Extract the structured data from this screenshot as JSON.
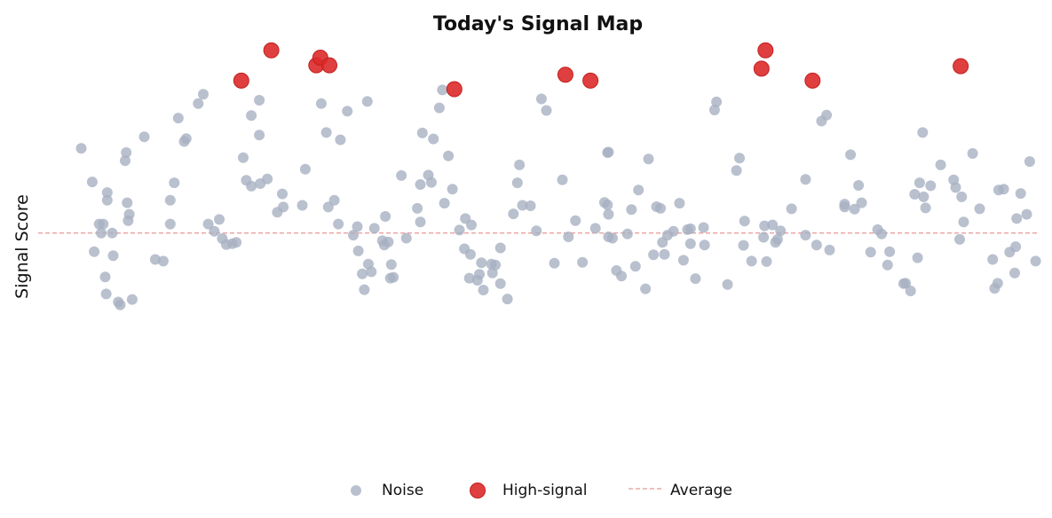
{
  "chart_data": {
    "type": "scatter",
    "title": "Today's Signal Map",
    "xlabel": "",
    "ylabel": "Signal Score",
    "xlim": [
      0,
      100
    ],
    "ylim": [
      0,
      100
    ],
    "grid": false,
    "legend_position": "bottom-center",
    "average": 53.6,
    "colors": {
      "noise": "#a7b0c2",
      "high": "#dd2a2a",
      "average": "#e89696"
    },
    "series": [
      {
        "name": "Noise",
        "points": [
          [
            4.3,
            73.5
          ],
          [
            5.4,
            65.6
          ],
          [
            5.6,
            49.2
          ],
          [
            6.1,
            55.7
          ],
          [
            6.3,
            53.6
          ],
          [
            6.5,
            55.7
          ],
          [
            6.7,
            43.3
          ],
          [
            6.8,
            39.3
          ],
          [
            6.9,
            61.3
          ],
          [
            6.9,
            63.1
          ],
          [
            7.4,
            53.6
          ],
          [
            7.5,
            48.3
          ],
          [
            8.0,
            37.4
          ],
          [
            8.2,
            36.7
          ],
          [
            8.7,
            70.6
          ],
          [
            8.8,
            72.5
          ],
          [
            8.9,
            60.7
          ],
          [
            9.0,
            56.5
          ],
          [
            9.1,
            58.0
          ],
          [
            9.4,
            38.0
          ],
          [
            10.6,
            76.2
          ],
          [
            11.7,
            47.4
          ],
          [
            12.5,
            47.0
          ],
          [
            13.2,
            55.7
          ],
          [
            13.2,
            61.3
          ],
          [
            13.6,
            65.4
          ],
          [
            14.0,
            80.6
          ],
          [
            14.6,
            75.1
          ],
          [
            14.8,
            75.8
          ],
          [
            16.0,
            84.0
          ],
          [
            16.5,
            86.2
          ],
          [
            17.0,
            55.7
          ],
          [
            17.6,
            54.0
          ],
          [
            18.1,
            56.8
          ],
          [
            18.4,
            52.3
          ],
          [
            18.8,
            50.9
          ],
          [
            19.4,
            51.1
          ],
          [
            19.8,
            51.4
          ],
          [
            20.5,
            71.3
          ],
          [
            20.8,
            66.0
          ],
          [
            21.3,
            64.6
          ],
          [
            21.3,
            81.2
          ],
          [
            22.1,
            84.8
          ],
          [
            22.1,
            76.6
          ],
          [
            22.2,
            65.2
          ],
          [
            22.9,
            66.3
          ],
          [
            23.9,
            58.5
          ],
          [
            24.4,
            62.8
          ],
          [
            24.5,
            59.7
          ],
          [
            26.4,
            60.1
          ],
          [
            26.7,
            68.6
          ],
          [
            28.3,
            84.0
          ],
          [
            28.8,
            77.2
          ],
          [
            29.0,
            59.7
          ],
          [
            29.6,
            61.3
          ],
          [
            30.0,
            55.7
          ],
          [
            30.2,
            75.5
          ],
          [
            30.9,
            82.2
          ],
          [
            31.5,
            53.1
          ],
          [
            31.9,
            55.1
          ],
          [
            32.0,
            49.4
          ],
          [
            32.4,
            44.0
          ],
          [
            32.6,
            40.3
          ],
          [
            32.9,
            84.5
          ],
          [
            33.0,
            46.3
          ],
          [
            33.3,
            44.5
          ],
          [
            33.6,
            54.7
          ],
          [
            34.4,
            51.8
          ],
          [
            34.6,
            50.8
          ],
          [
            34.7,
            57.5
          ],
          [
            35.0,
            51.5
          ],
          [
            35.2,
            43.0
          ],
          [
            35.3,
            46.2
          ],
          [
            35.5,
            43.2
          ],
          [
            36.3,
            67.1
          ],
          [
            36.8,
            52.4
          ],
          [
            37.9,
            59.4
          ],
          [
            38.2,
            65.0
          ],
          [
            38.2,
            56.2
          ],
          [
            38.4,
            77.1
          ],
          [
            39.0,
            67.2
          ],
          [
            39.3,
            65.5
          ],
          [
            39.5,
            75.7
          ],
          [
            40.1,
            83.0
          ],
          [
            40.4,
            87.2
          ],
          [
            40.6,
            60.6
          ],
          [
            41.0,
            71.7
          ],
          [
            41.4,
            63.9
          ],
          [
            42.1,
            54.3
          ],
          [
            42.6,
            49.9
          ],
          [
            42.7,
            57.0
          ],
          [
            43.1,
            43.0
          ],
          [
            43.2,
            48.6
          ],
          [
            43.3,
            55.5
          ],
          [
            43.9,
            42.5
          ],
          [
            44.1,
            43.9
          ],
          [
            44.3,
            46.6
          ],
          [
            44.5,
            40.2
          ],
          [
            45.3,
            46.3
          ],
          [
            45.4,
            44.2
          ],
          [
            45.7,
            46.1
          ],
          [
            46.2,
            41.7
          ],
          [
            46.2,
            50.1
          ],
          [
            46.9,
            38.1
          ],
          [
            47.5,
            58.1
          ],
          [
            47.9,
            65.4
          ],
          [
            48.1,
            69.6
          ],
          [
            48.4,
            60.1
          ],
          [
            49.2,
            60.0
          ],
          [
            49.8,
            54.1
          ],
          [
            50.3,
            85.1
          ],
          [
            50.8,
            82.4
          ],
          [
            51.6,
            46.5
          ],
          [
            52.4,
            66.1
          ],
          [
            53.0,
            52.7
          ],
          [
            53.7,
            56.5
          ],
          [
            54.4,
            46.7
          ],
          [
            55.7,
            54.7
          ],
          [
            56.6,
            60.8
          ],
          [
            56.9,
            72.5
          ],
          [
            56.9,
            60.2
          ],
          [
            57.0,
            52.7
          ],
          [
            57.0,
            58.0
          ],
          [
            57.0,
            72.6
          ],
          [
            57.4,
            52.4
          ],
          [
            57.8,
            44.8
          ],
          [
            58.3,
            43.5
          ],
          [
            58.9,
            53.4
          ],
          [
            59.3,
            59.1
          ],
          [
            59.7,
            45.8
          ],
          [
            60.0,
            63.7
          ],
          [
            60.7,
            40.5
          ],
          [
            61.0,
            71.0
          ],
          [
            61.5,
            48.5
          ],
          [
            61.8,
            59.8
          ],
          [
            62.2,
            59.4
          ],
          [
            62.4,
            51.4
          ],
          [
            62.6,
            48.6
          ],
          [
            62.9,
            53.1
          ],
          [
            63.5,
            54.0
          ],
          [
            64.1,
            60.6
          ],
          [
            64.5,
            47.2
          ],
          [
            64.9,
            54.4
          ],
          [
            65.2,
            51.1
          ],
          [
            65.2,
            54.6
          ],
          [
            65.7,
            42.9
          ],
          [
            66.5,
            54.9
          ],
          [
            66.6,
            50.8
          ],
          [
            67.6,
            82.5
          ],
          [
            67.8,
            84.4
          ],
          [
            68.9,
            41.5
          ],
          [
            69.8,
            68.3
          ],
          [
            70.1,
            71.2
          ],
          [
            70.5,
            50.7
          ],
          [
            70.6,
            56.4
          ],
          [
            71.3,
            47.0
          ],
          [
            72.5,
            52.6
          ],
          [
            72.6,
            55.3
          ],
          [
            72.8,
            46.9
          ],
          [
            73.4,
            55.5
          ],
          [
            73.7,
            51.4
          ],
          [
            73.9,
            52.1
          ],
          [
            74.2,
            54.1
          ],
          [
            75.3,
            59.3
          ],
          [
            76.7,
            53.1
          ],
          [
            76.7,
            66.2
          ],
          [
            77.8,
            50.8
          ],
          [
            78.3,
            79.9
          ],
          [
            78.8,
            81.3
          ],
          [
            79.1,
            49.6
          ],
          [
            80.6,
            59.7
          ],
          [
            80.6,
            60.4
          ],
          [
            81.2,
            72.0
          ],
          [
            81.6,
            59.2
          ],
          [
            82.0,
            64.8
          ],
          [
            82.3,
            60.7
          ],
          [
            83.2,
            49.1
          ],
          [
            83.9,
            54.4
          ],
          [
            84.3,
            53.4
          ],
          [
            84.9,
            46.1
          ],
          [
            85.1,
            49.2
          ],
          [
            86.5,
            41.7
          ],
          [
            86.7,
            41.8
          ],
          [
            87.2,
            40.0
          ],
          [
            87.6,
            62.7
          ],
          [
            87.9,
            47.8
          ],
          [
            88.1,
            65.4
          ],
          [
            88.4,
            77.2
          ],
          [
            88.5,
            62.1
          ],
          [
            88.7,
            59.5
          ],
          [
            89.2,
            64.7
          ],
          [
            90.2,
            69.6
          ],
          [
            91.5,
            66.1
          ],
          [
            91.7,
            64.3
          ],
          [
            92.1,
            52.1
          ],
          [
            92.3,
            62.1
          ],
          [
            92.5,
            56.2
          ],
          [
            93.4,
            72.3
          ],
          [
            94.1,
            59.3
          ],
          [
            95.4,
            47.4
          ],
          [
            95.6,
            40.6
          ],
          [
            95.9,
            41.8
          ],
          [
            96.0,
            63.7
          ],
          [
            96.5,
            63.9
          ],
          [
            97.1,
            49.1
          ],
          [
            97.6,
            44.2
          ],
          [
            97.7,
            50.4
          ],
          [
            97.8,
            57.0
          ],
          [
            98.2,
            62.9
          ],
          [
            98.8,
            58.0
          ],
          [
            99.1,
            70.4
          ],
          [
            99.7,
            47.0
          ]
        ]
      },
      {
        "name": "High-signal",
        "points": [
          [
            20.3,
            89.4
          ],
          [
            23.3,
            96.5
          ],
          [
            27.8,
            93.0
          ],
          [
            28.2,
            94.8
          ],
          [
            29.1,
            93.0
          ],
          [
            41.6,
            87.4
          ],
          [
            52.7,
            90.8
          ],
          [
            55.2,
            89.4
          ],
          [
            72.3,
            92.2
          ],
          [
            72.7,
            96.5
          ],
          [
            77.4,
            89.4
          ],
          [
            92.2,
            92.8
          ]
        ]
      }
    ]
  },
  "legend": {
    "noise_label": "Noise",
    "high_label": "High-signal",
    "average_label": "Average"
  }
}
